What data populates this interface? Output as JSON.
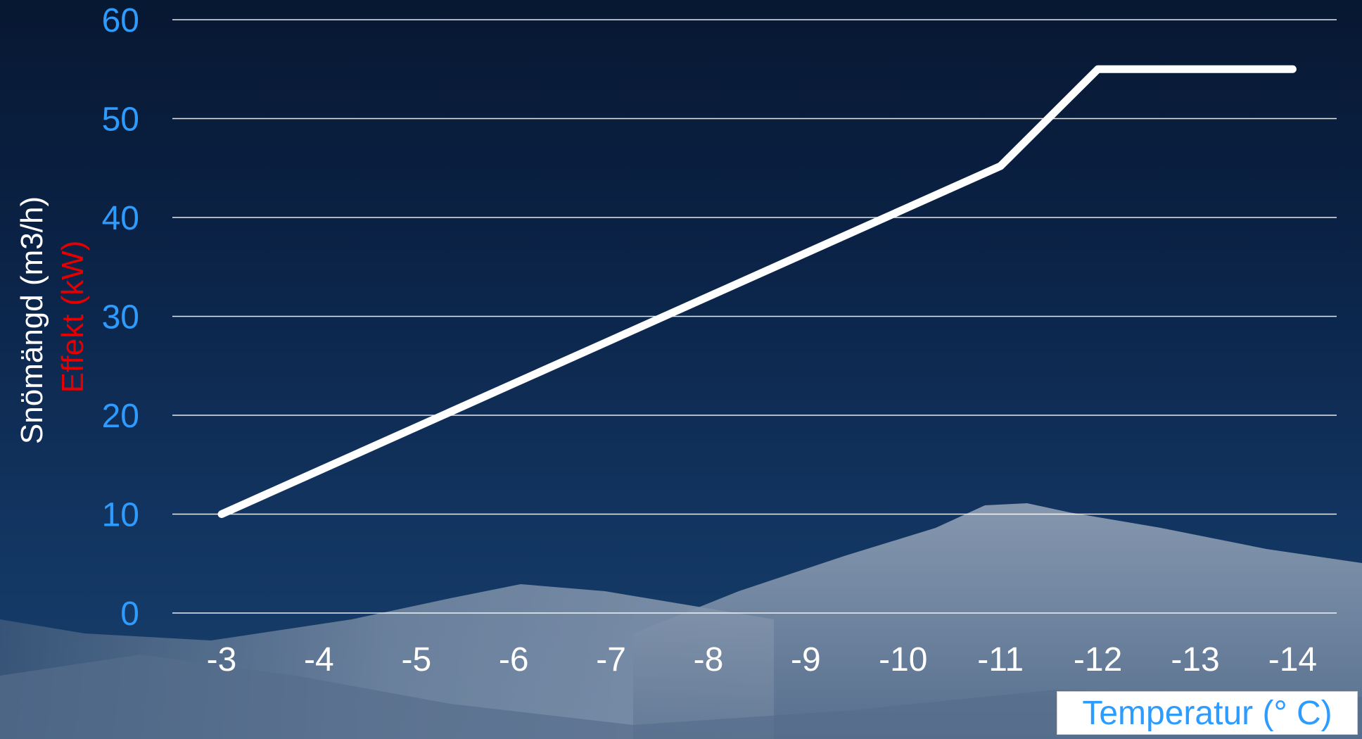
{
  "chart_data": {
    "type": "line",
    "x": [
      -3,
      -4,
      -5,
      -6,
      -7,
      -8,
      -9,
      -10,
      -11,
      -12,
      -13,
      -14
    ],
    "x_tick_labels": [
      "-3",
      "-4",
      "-5",
      "-6",
      "-7",
      "-8",
      "-9",
      "-10",
      "-11",
      "-12",
      "-13",
      "-14"
    ],
    "series": [
      {
        "values": [
          10,
          14.4,
          18.8,
          23.2,
          27.6,
          32,
          36.4,
          40.8,
          45.2,
          55,
          55,
          55
        ]
      }
    ],
    "ylim": [
      0,
      60
    ],
    "y_ticks": [
      0,
      10,
      20,
      30,
      40,
      50,
      60
    ],
    "xlabel": "Temperatur (° C)",
    "ylabel": "Snömängd (m3/h)",
    "ylabel_secondary": "Effekt (kW)",
    "grid": true,
    "colors": {
      "line": "#ffffff",
      "gridline": "#ffffff",
      "y_tick_text": "#2e9bff",
      "x_tick_text": "#ffffff",
      "ylabel": "#ffffff",
      "ylabel_secondary": "#e40000",
      "xlabel_text": "#2e9bff",
      "xlabel_box": "#ffffff"
    }
  }
}
